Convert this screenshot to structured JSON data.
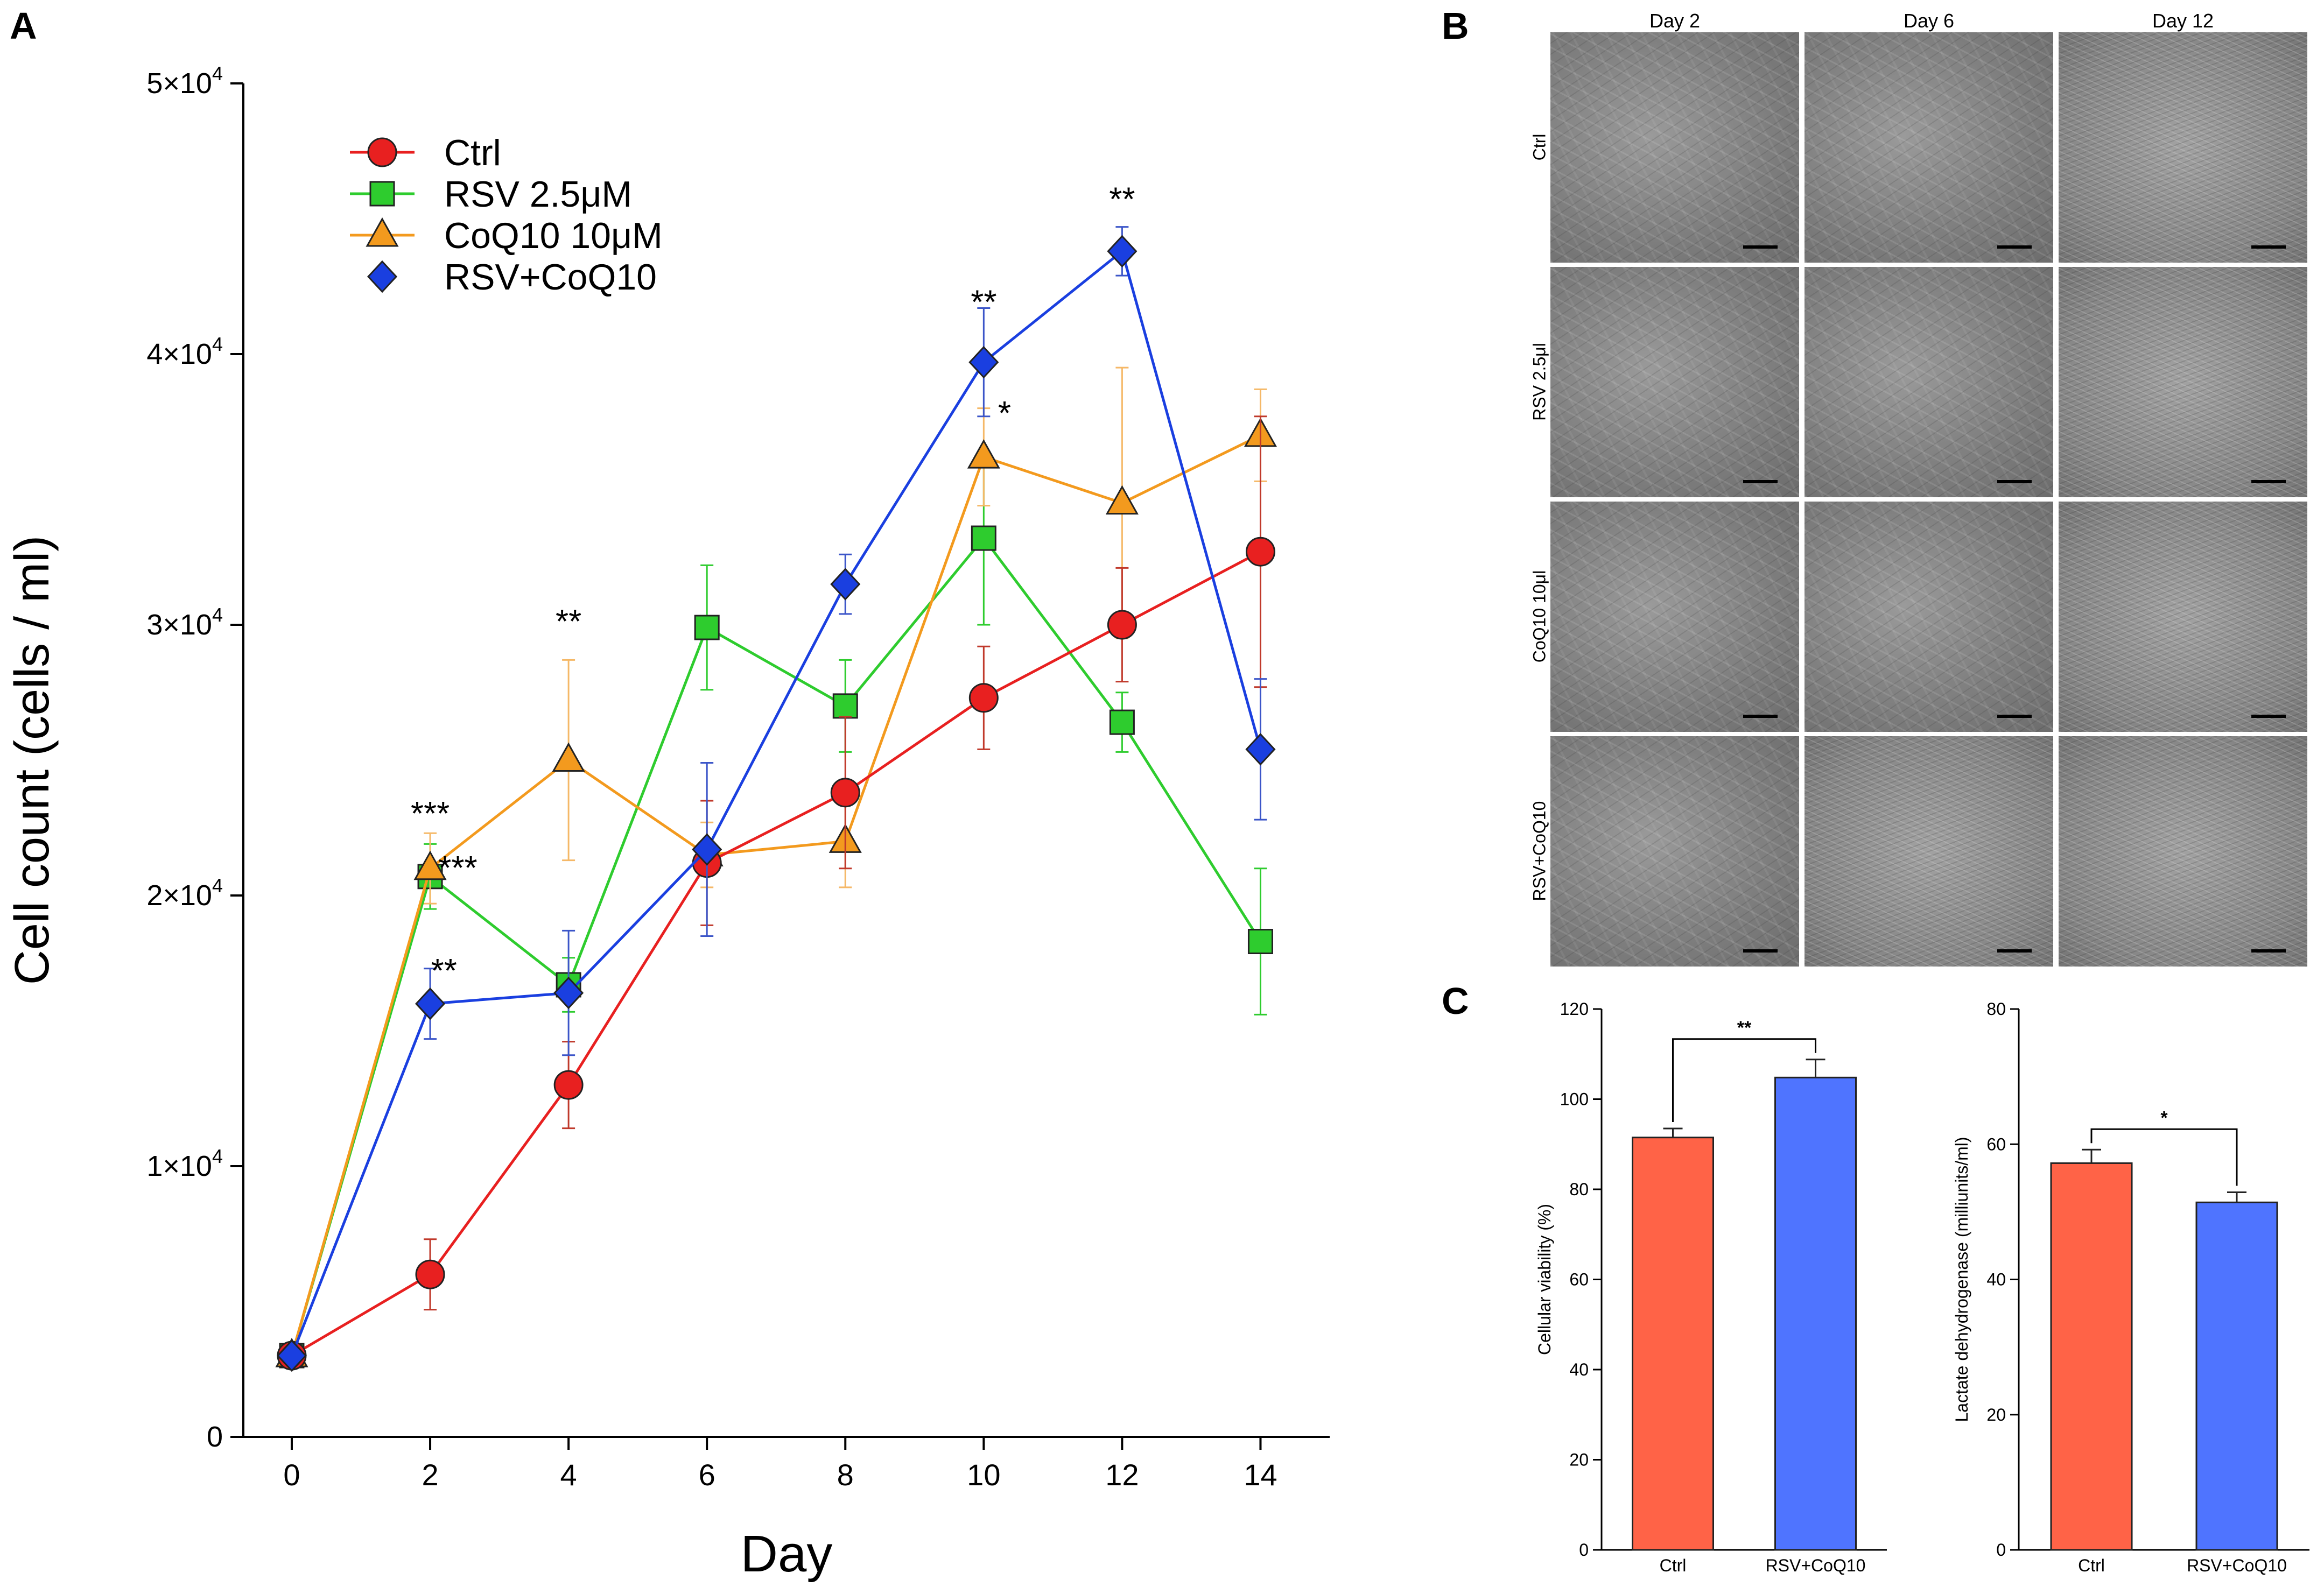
{
  "panels": {
    "a": "A",
    "b": "B",
    "c": "C"
  },
  "chart_data": [
    {
      "type": "line",
      "title": "",
      "xlabel": "Day",
      "ylabel": "Cell count (cells / ml)",
      "xlim": [
        -0.7,
        15
      ],
      "ylim": [
        0,
        50000
      ],
      "x": [
        0,
        2,
        4,
        6,
        8,
        10,
        12,
        14
      ],
      "x_ticks": [
        "0",
        "2",
        "4",
        "6",
        "8",
        "10",
        "12",
        "14"
      ],
      "y_ticks": [
        {
          "value": 0,
          "label": "0"
        },
        {
          "value": 10000,
          "label": "1×10",
          "exp": "4"
        },
        {
          "value": 20000,
          "label": "2×10",
          "exp": "4"
        },
        {
          "value": 30000,
          "label": "3×10",
          "exp": "4"
        },
        {
          "value": 40000,
          "label": "4×10",
          "exp": "4"
        },
        {
          "value": 50000,
          "label": "5×10",
          "exp": "4"
        }
      ],
      "series": [
        {
          "name": "Ctrl",
          "marker": "circle",
          "color": "#e82020",
          "errcolor": "#c0392b",
          "values": [
            3000,
            6000,
            13000,
            21200,
            23800,
            27300,
            30000,
            32700
          ],
          "err": [
            0,
            1300,
            1600,
            2300,
            2800,
            1900,
            2100,
            5000
          ]
        },
        {
          "name": "RSV 2.5μM",
          "marker": "square",
          "color": "#2ecc2e",
          "errcolor": "#2ecc2e",
          "values": [
            3000,
            20700,
            16700,
            29900,
            27000,
            33200,
            26400,
            18300
          ],
          "err": [
            0,
            1200,
            1000,
            2300,
            1700,
            3200,
            1100,
            2700
          ]
        },
        {
          "name": "CoQ10 10μM",
          "marker": "triangle",
          "color": "#f39a1e",
          "errcolor": "#f5b867",
          "values": [
            3000,
            21000,
            25000,
            21500,
            22000,
            36200,
            34500,
            37000
          ],
          "err": [
            0,
            1300,
            3700,
            1200,
            1700,
            1800,
            5000,
            1700
          ]
        },
        {
          "name": "RSV+CoQ10",
          "marker": "diamond",
          "color": "#1a3fe0",
          "errcolor": "#3b55c8",
          "values": [
            3000,
            16000,
            16400,
            21700,
            31500,
            39700,
            43800,
            25400
          ],
          "err": [
            0,
            1300,
            2300,
            3200,
            1100,
            2000,
            900,
            2600
          ]
        }
      ],
      "annotations": [
        {
          "x": 2,
          "y": 22600,
          "text": "***"
        },
        {
          "x": 2.4,
          "y": 20600,
          "text": "***"
        },
        {
          "x": 2.2,
          "y": 16800,
          "text": "**"
        },
        {
          "x": 4,
          "y": 29700,
          "text": "**"
        },
        {
          "x": 10,
          "y": 41500,
          "text": "**"
        },
        {
          "x": 10.3,
          "y": 37400,
          "text": "*"
        },
        {
          "x": 12,
          "y": 45300,
          "text": "**"
        }
      ],
      "legend": "top-left"
    },
    {
      "type": "bar",
      "categories": [
        "Ctrl",
        "RSV+CoQ10"
      ],
      "values": [
        91.5,
        104.8
      ],
      "err": [
        2.0,
        4.0
      ],
      "colors": [
        "#ff6347",
        "#4f74ff"
      ],
      "ylabel": "Cellular viability (%)",
      "ylim": [
        0,
        120
      ],
      "y_ticks": [
        0,
        20,
        40,
        60,
        80,
        100,
        120
      ],
      "significance": "**"
    },
    {
      "type": "bar",
      "categories": [
        "Ctrl",
        "RSV+CoQ10"
      ],
      "values": [
        57.2,
        51.4
      ],
      "err": [
        2.0,
        1.5
      ],
      "colors": [
        "#ff6347",
        "#4f74ff"
      ],
      "ylabel": "Lactate dehydrogenase (milliunits/ml)",
      "ylim": [
        0,
        80
      ],
      "y_ticks": [
        0,
        20,
        40,
        60,
        80
      ],
      "significance": "*"
    }
  ],
  "micrographs": {
    "columns": [
      "Day 2",
      "Day 6",
      "Day 12"
    ],
    "rows": [
      "Ctrl",
      "RSV 2.5μl",
      "CoQ10  10μl",
      "RSV+CoQ10"
    ]
  }
}
